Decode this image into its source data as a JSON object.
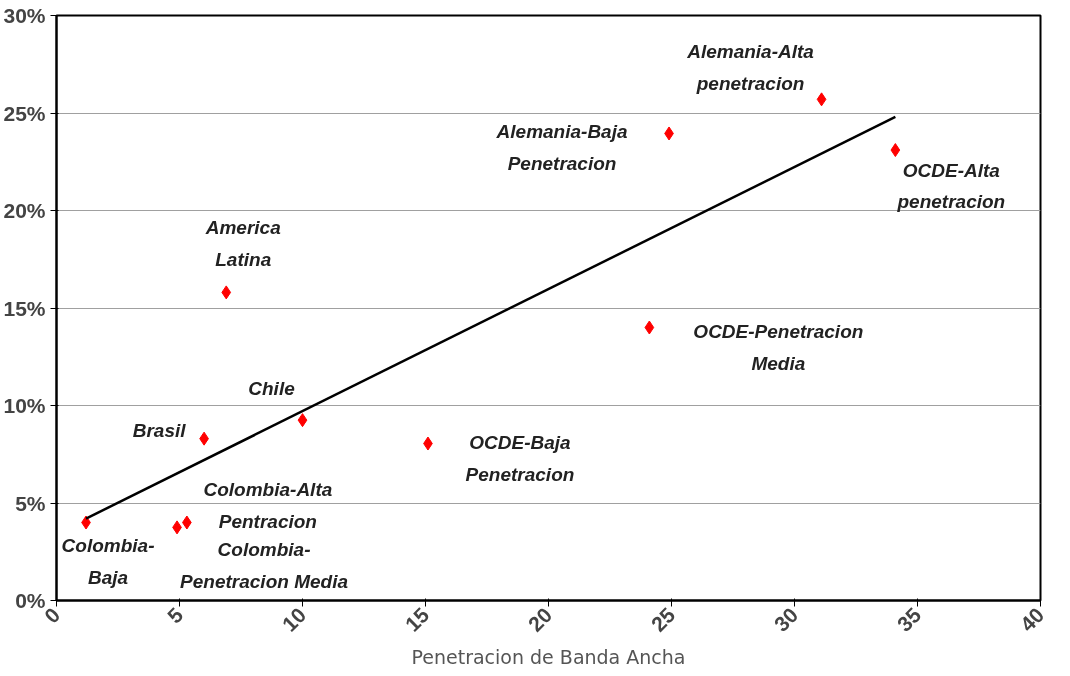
{
  "chart_data": {
    "type": "scatter",
    "xlabel": "Penetracion de Banda Ancha",
    "xlim": [
      0,
      40
    ],
    "xticks": [
      0,
      5,
      10,
      15,
      20,
      25,
      30,
      35,
      40
    ],
    "ylim": [
      0,
      30
    ],
    "yticks": [
      {
        "value": 0,
        "label": "0%"
      },
      {
        "value": 5,
        "label": "5%"
      },
      {
        "value": 10,
        "label": "10%"
      },
      {
        "value": 15,
        "label": "15%"
      },
      {
        "value": 20,
        "label": "20%"
      },
      {
        "value": 25,
        "label": "25%"
      },
      {
        "value": 30,
        "label": "30%"
      }
    ],
    "grid": "y",
    "series": [
      {
        "color": "#ff0000",
        "marker": "diamond",
        "x": [
          1.2,
          4.9,
          5.3,
          6.0,
          6.9,
          10.0,
          15.1,
          24.1,
          24.9,
          31.1,
          34.1
        ],
        "values": [
          4.0,
          3.75,
          4.0,
          8.3,
          15.8,
          9.25,
          8.05,
          14.0,
          23.95,
          25.7,
          23.1
        ]
      },
      {
        "type": "line",
        "color": "#000000",
        "x": [
          1.2,
          34.1
        ],
        "values": [
          4.2,
          24.8
        ]
      }
    ],
    "annotations": [
      {
        "text": "Alemania-Alta\npenetracion",
        "x": 31.1,
        "y": 25.7
      },
      {
        "text": "Alemania-Baja\nPenetracion",
        "x": 24.9,
        "y": 23.95
      },
      {
        "text": "OCDE-Alta\npenetracion",
        "x": 34.1,
        "y": 23.1
      },
      {
        "text": "America\nLatina",
        "x": 6.9,
        "y": 15.8
      },
      {
        "text": "OCDE-Penetracion\nMedia",
        "x": 24.1,
        "y": 14.0
      },
      {
        "text": "Chile",
        "x": 10.0,
        "y": 9.25
      },
      {
        "text": "Brasil",
        "x": 6.0,
        "y": 8.3
      },
      {
        "text": "OCDE-Baja\nPenetracion",
        "x": 15.1,
        "y": 8.05
      },
      {
        "text": "Colombia-Alta\nPentracion",
        "x": 5.3,
        "y": 4.0
      },
      {
        "text": "Colombia-\nBaja",
        "x": 1.2,
        "y": 4.0
      },
      {
        "text": "Colombia-\nPenetracion Media",
        "x": 4.9,
        "y": 3.75
      }
    ]
  }
}
